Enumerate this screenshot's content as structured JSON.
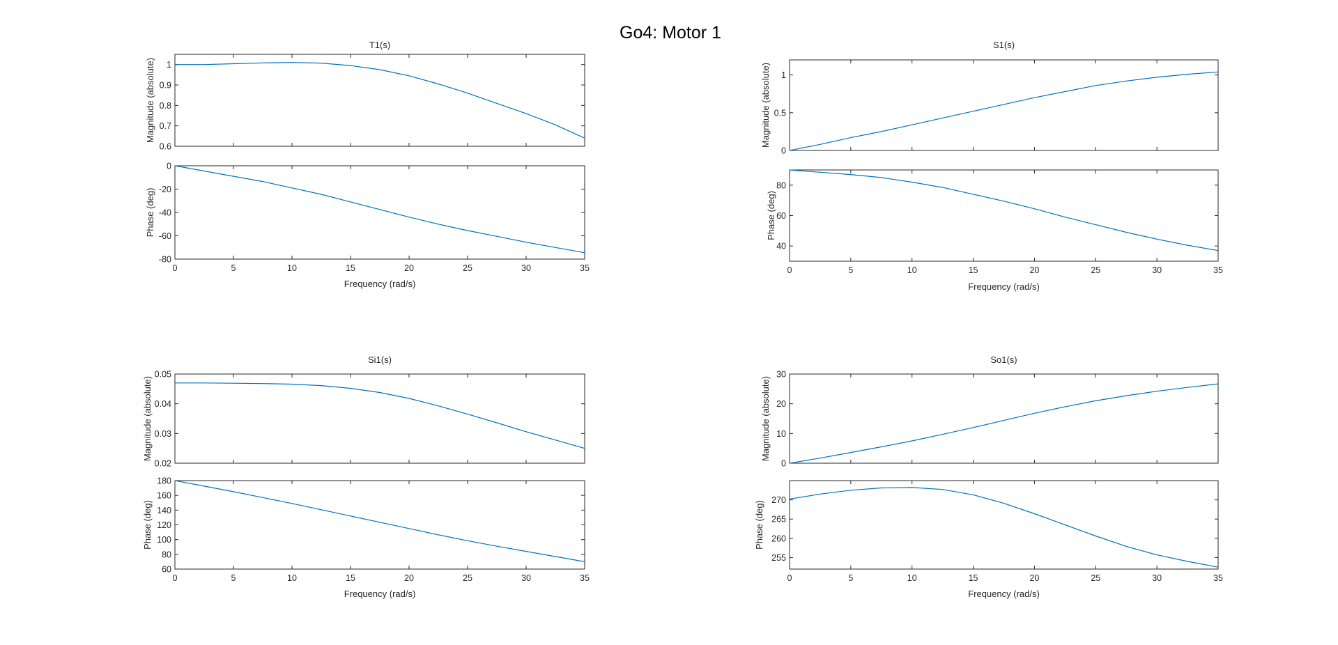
{
  "figure_title": "Go4: Motor 1",
  "colors": {
    "line": "#0072bd",
    "axes": "#262626",
    "background": "#ffffff"
  },
  "chart_data": [
    {
      "type": "line",
      "title": "T1(s)",
      "xlabel": "Frequency (rad/s)",
      "xlim": [
        0,
        35
      ],
      "xticks": [
        0,
        5,
        10,
        15,
        20,
        25,
        30,
        35
      ],
      "xtick_labels": [
        "0",
        "5",
        "10",
        "15",
        "20",
        "25",
        "30",
        "35"
      ],
      "panels": [
        {
          "ylabel": "Magnitude (absolute)",
          "ylim": [
            0.6,
            1.05
          ],
          "yticks": [
            0.6,
            0.7,
            0.8,
            0.9,
            1
          ],
          "ytick_labels": [
            "0.6",
            "0.7",
            "0.8",
            "0.9",
            "1"
          ],
          "x": [
            0,
            2.5,
            5,
            7.5,
            10,
            12.5,
            15,
            17.5,
            20,
            22.5,
            25,
            27.5,
            30,
            32.5,
            35
          ],
          "y": [
            1.0,
            1.0,
            1.004,
            1.008,
            1.01,
            1.007,
            0.995,
            0.975,
            0.945,
            0.905,
            0.86,
            0.81,
            0.76,
            0.705,
            0.64
          ]
        },
        {
          "ylabel": "Phase (deg)",
          "ylim": [
            -80,
            0
          ],
          "yticks": [
            -80,
            -60,
            -40,
            -20,
            0
          ],
          "ytick_labels": [
            "-80",
            "-60",
            "-40",
            "-20",
            "0"
          ],
          "x": [
            0,
            2.5,
            5,
            7.5,
            10,
            12.5,
            15,
            17.5,
            20,
            22.5,
            25,
            27.5,
            30,
            32.5,
            35
          ],
          "y": [
            0,
            -4.5,
            -9,
            -13.5,
            -19,
            -24.5,
            -31,
            -37.5,
            -44,
            -50,
            -55.5,
            -60.5,
            -65.5,
            -70,
            -74.5
          ]
        }
      ]
    },
    {
      "type": "line",
      "title": "S1(s)",
      "xlabel": "Frequency (rad/s)",
      "xlim": [
        0,
        35
      ],
      "xticks": [
        0,
        5,
        10,
        15,
        20,
        25,
        30,
        35
      ],
      "xtick_labels": [
        "0",
        "5",
        "10",
        "15",
        "20",
        "25",
        "30",
        "35"
      ],
      "panels": [
        {
          "ylabel": "Magnitude (absolute)",
          "ylim": [
            0,
            1.2
          ],
          "yticks": [
            0,
            0.5,
            1
          ],
          "ytick_labels": [
            "0",
            "0.5",
            "1"
          ],
          "x": [
            0,
            2.5,
            5,
            7.5,
            10,
            12.5,
            15,
            17.5,
            20,
            22.5,
            25,
            27.5,
            30,
            32.5,
            35
          ],
          "y": [
            0,
            0.08,
            0.17,
            0.25,
            0.34,
            0.43,
            0.52,
            0.61,
            0.7,
            0.78,
            0.86,
            0.92,
            0.97,
            1.01,
            1.04
          ]
        },
        {
          "ylabel": "Phase (deg)",
          "ylim": [
            30,
            90
          ],
          "yticks": [
            40,
            60,
            80
          ],
          "ytick_labels": [
            "40",
            "60",
            "80"
          ],
          "x": [
            0,
            2.5,
            5,
            7.5,
            10,
            12.5,
            15,
            17.5,
            20,
            22.5,
            25,
            27.5,
            30,
            32.5,
            35
          ],
          "y": [
            90,
            88.5,
            87,
            85,
            82,
            78.5,
            74,
            69.5,
            64.5,
            59,
            54,
            49,
            44.5,
            40.5,
            37
          ]
        }
      ]
    },
    {
      "type": "line",
      "title": "Si1(s)",
      "xlabel": "Frequency (rad/s)",
      "xlim": [
        0,
        35
      ],
      "xticks": [
        0,
        5,
        10,
        15,
        20,
        25,
        30,
        35
      ],
      "xtick_labels": [
        "0",
        "5",
        "10",
        "15",
        "20",
        "25",
        "30",
        "35"
      ],
      "panels": [
        {
          "ylabel": "Magnitude (absolute)",
          "ylim": [
            0.02,
            0.05
          ],
          "yticks": [
            0.02,
            0.03,
            0.04,
            0.05
          ],
          "ytick_labels": [
            "0.02",
            "0.03",
            "0.04",
            "0.05"
          ],
          "x": [
            0,
            2.5,
            5,
            7.5,
            10,
            12.5,
            15,
            17.5,
            20,
            22.5,
            25,
            27.5,
            30,
            32.5,
            35
          ],
          "y": [
            0.047,
            0.047,
            0.0469,
            0.0468,
            0.0466,
            0.0461,
            0.0452,
            0.0438,
            0.0418,
            0.0393,
            0.0365,
            0.0336,
            0.0306,
            0.0278,
            0.025
          ]
        },
        {
          "ylabel": "Phase (deg)",
          "ylim": [
            60,
            180
          ],
          "yticks": [
            60,
            80,
            100,
            120,
            140,
            160,
            180
          ],
          "ytick_labels": [
            "60",
            "80",
            "100",
            "120",
            "140",
            "160",
            "180"
          ],
          "x": [
            0,
            2.5,
            5,
            7.5,
            10,
            12.5,
            15,
            17.5,
            20,
            22.5,
            25,
            27.5,
            30,
            32.5,
            35
          ],
          "y": [
            180,
            172.5,
            165,
            157,
            149,
            140.5,
            132,
            123.5,
            115,
            106.5,
            98.5,
            91,
            84,
            77,
            70
          ]
        }
      ]
    },
    {
      "type": "line",
      "title": "So1(s)",
      "xlabel": "Frequency (rad/s)",
      "xlim": [
        0,
        35
      ],
      "xticks": [
        0,
        5,
        10,
        15,
        20,
        25,
        30,
        35
      ],
      "xtick_labels": [
        "0",
        "5",
        "10",
        "15",
        "20",
        "25",
        "30",
        "35"
      ],
      "panels": [
        {
          "ylabel": "Magnitude (absolute)",
          "ylim": [
            0,
            30
          ],
          "yticks": [
            0,
            10,
            20,
            30
          ],
          "ytick_labels": [
            "0",
            "10",
            "20",
            "30"
          ],
          "x": [
            0,
            2.5,
            5,
            7.5,
            10,
            12.5,
            15,
            17.5,
            20,
            22.5,
            25,
            27.5,
            30,
            32.5,
            35
          ],
          "y": [
            0,
            1.7,
            3.6,
            5.5,
            7.5,
            9.7,
            12,
            14.4,
            16.8,
            19,
            21,
            22.7,
            24.2,
            25.5,
            26.7
          ]
        },
        {
          "ylabel": "Phase (deg)",
          "ylim": [
            252,
            275
          ],
          "yticks": [
            255,
            260,
            265,
            270
          ],
          "ytick_labels": [
            "255",
            "260",
            "265",
            "270"
          ],
          "x": [
            0,
            2.5,
            5,
            7.5,
            10,
            12.5,
            15,
            17.5,
            20,
            22.5,
            25,
            27.5,
            30,
            32.5,
            35
          ],
          "y": [
            270.2,
            271.5,
            272.5,
            273.1,
            273.2,
            272.7,
            271.3,
            269.1,
            266.4,
            263.5,
            260.6,
            257.9,
            255.7,
            254,
            252.5
          ]
        }
      ]
    }
  ]
}
